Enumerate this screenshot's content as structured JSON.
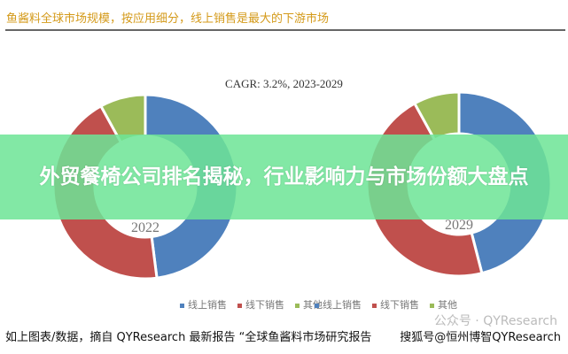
{
  "header": {
    "title": "鱼酱料全球市场规模，按应用细分，线上销售是最大的下游市场"
  },
  "chart_data": [
    {
      "type": "pie",
      "subtype": "donut",
      "title": "CAGR:    3.2%, 2023-2029",
      "center_label": "2022",
      "categories": [
        "线上销售",
        "线下销售",
        "其他"
      ],
      "values": [
        48,
        44,
        8
      ],
      "colors": [
        "#4f81bd",
        "#c0504d",
        "#9bbb59"
      ],
      "legend": "bottom"
    },
    {
      "type": "pie",
      "subtype": "donut",
      "center_label": "2029",
      "categories": [
        "线上销售",
        "线下销售",
        "其他"
      ],
      "values": [
        46,
        46,
        8
      ],
      "colors": [
        "#4f81bd",
        "#c0504d",
        "#9bbb59"
      ],
      "legend": "bottom"
    }
  ],
  "overlay": {
    "headline": "外贸餐椅公司排名揭秘，行业影响力与市场份额大盘点"
  },
  "footer": {
    "source": "如上图表/数据，摘自 QYResearch 最新报告 “全球鱼酱料市场研究报告",
    "watermark": "搜狐号@恒州博智QYResearch",
    "watermark_faint": "公众号 · QYResearch"
  }
}
